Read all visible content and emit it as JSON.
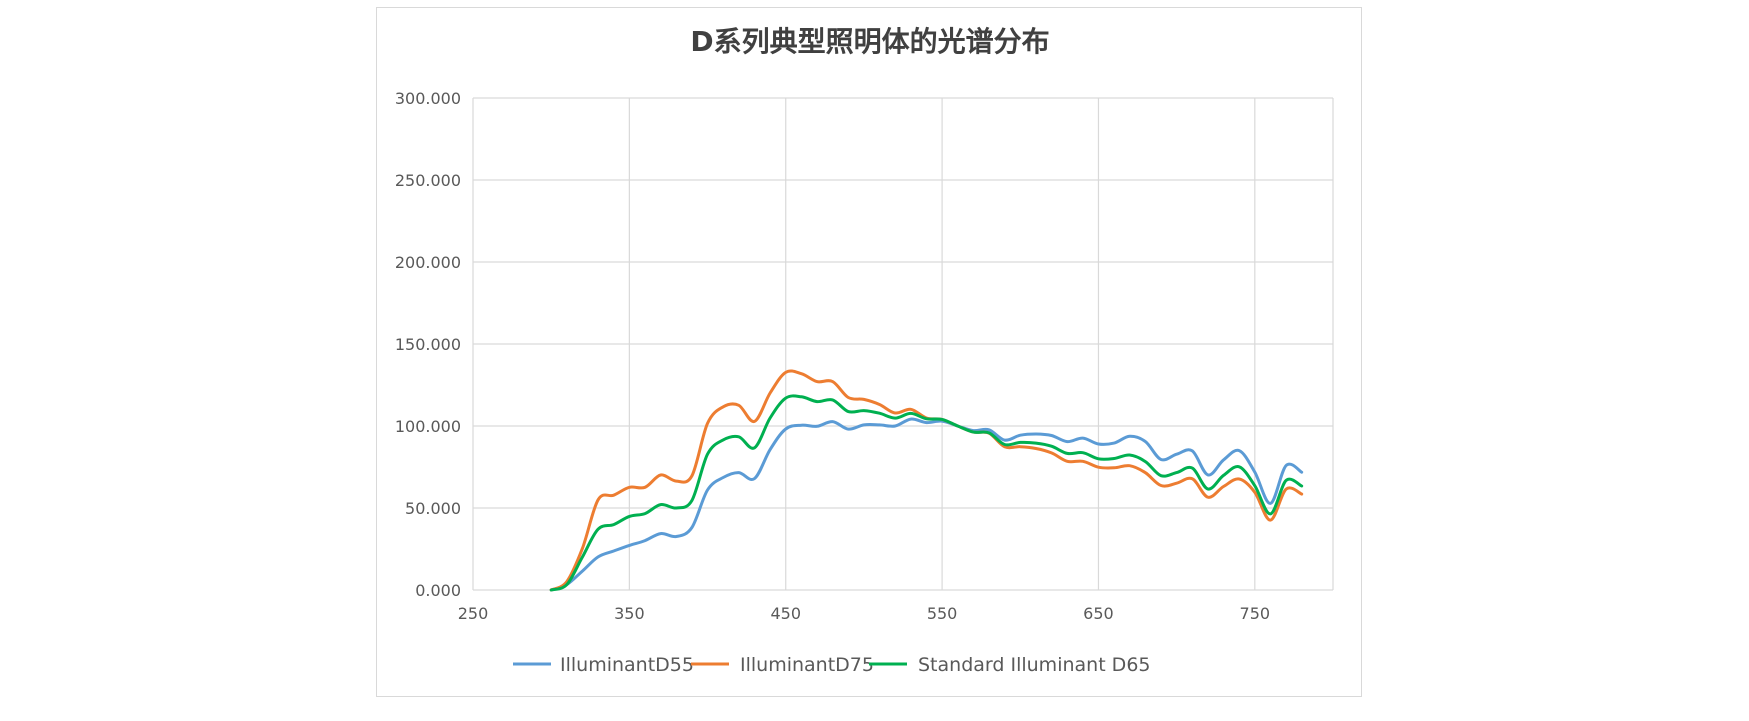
{
  "chart_data": {
    "type": "line",
    "title": "D系列典型照明体的光谱分布",
    "xlabel": "",
    "ylabel": "",
    "xlim": [
      250,
      800
    ],
    "ylim": [
      0,
      300
    ],
    "x_ticks": [
      250,
      350,
      450,
      550,
      650,
      750
    ],
    "x_tick_labels": [
      "250",
      "350",
      "450",
      "550",
      "650",
      "750"
    ],
    "y_ticks": [
      0,
      50,
      100,
      150,
      200,
      250,
      300
    ],
    "y_tick_labels": [
      "0.000",
      "50.000",
      "100.000",
      "150.000",
      "200.000",
      "250.000",
      "300.000"
    ],
    "grid": true,
    "legend_position": "bottom",
    "x": [
      300,
      310,
      320,
      330,
      340,
      350,
      360,
      370,
      380,
      390,
      400,
      410,
      420,
      430,
      440,
      450,
      460,
      470,
      480,
      490,
      500,
      510,
      520,
      530,
      540,
      550,
      560,
      570,
      580,
      590,
      600,
      610,
      620,
      630,
      640,
      650,
      660,
      670,
      680,
      690,
      700,
      710,
      720,
      730,
      740,
      750,
      760,
      770,
      780
    ],
    "series": [
      {
        "name": "IlluminantD55",
        "color": "#5b9bd5",
        "values": [
          0.02,
          3.3,
          11.6,
          20.2,
          23.8,
          27.2,
          30.1,
          34.4,
          32.6,
          38.1,
          61.0,
          68.6,
          71.6,
          67.9,
          85.6,
          98.2,
          100.5,
          99.8,
          102.7,
          98.1,
          100.7,
          100.7,
          100.0,
          104.2,
          102.1,
          103.0,
          100.0,
          97.2,
          97.7,
          91.4,
          94.4,
          95.1,
          94.2,
          90.5,
          92.6,
          89.0,
          89.6,
          93.7,
          90.5,
          79.6,
          82.8,
          84.8,
          70.2,
          79.3,
          85.0,
          71.9,
          52.8,
          75.9,
          71.8
        ]
      },
      {
        "name": "IlluminantD75",
        "color": "#ed7d31",
        "values": [
          0.04,
          5.1,
          25.5,
          55.0,
          57.8,
          62.6,
          62.6,
          70.1,
          66.4,
          69.6,
          101.6,
          111.7,
          112.6,
          102.8,
          120.1,
          132.7,
          131.9,
          127.1,
          127.1,
          117.4,
          116.2,
          113.1,
          107.9,
          110.2,
          104.9,
          104.0,
          100.0,
          96.3,
          95.6,
          87.3,
          87.4,
          86.3,
          83.6,
          78.5,
          78.5,
          74.9,
          74.5,
          75.8,
          71.5,
          63.7,
          65.1,
          67.8,
          56.6,
          63.1,
          67.7,
          59.6,
          42.6,
          61.5,
          58.5
        ]
      },
      {
        "name": "Standard Illuminant D65",
        "color": "#00b050",
        "values": [
          0.03,
          3.3,
          20.2,
          37.1,
          39.9,
          44.9,
          46.6,
          52.1,
          50.0,
          54.6,
          82.8,
          91.5,
          93.4,
          86.7,
          104.9,
          117.0,
          117.8,
          114.9,
          115.9,
          108.8,
          109.4,
          107.8,
          104.8,
          107.7,
          104.4,
          104.0,
          100.0,
          96.3,
          95.8,
          88.7,
          90.0,
          89.6,
          87.7,
          83.3,
          83.7,
          80.0,
          80.2,
          82.3,
          78.3,
          69.7,
          71.6,
          74.3,
          61.6,
          69.9,
          75.1,
          63.6,
          46.4,
          66.8,
          63.4
        ]
      }
    ]
  }
}
